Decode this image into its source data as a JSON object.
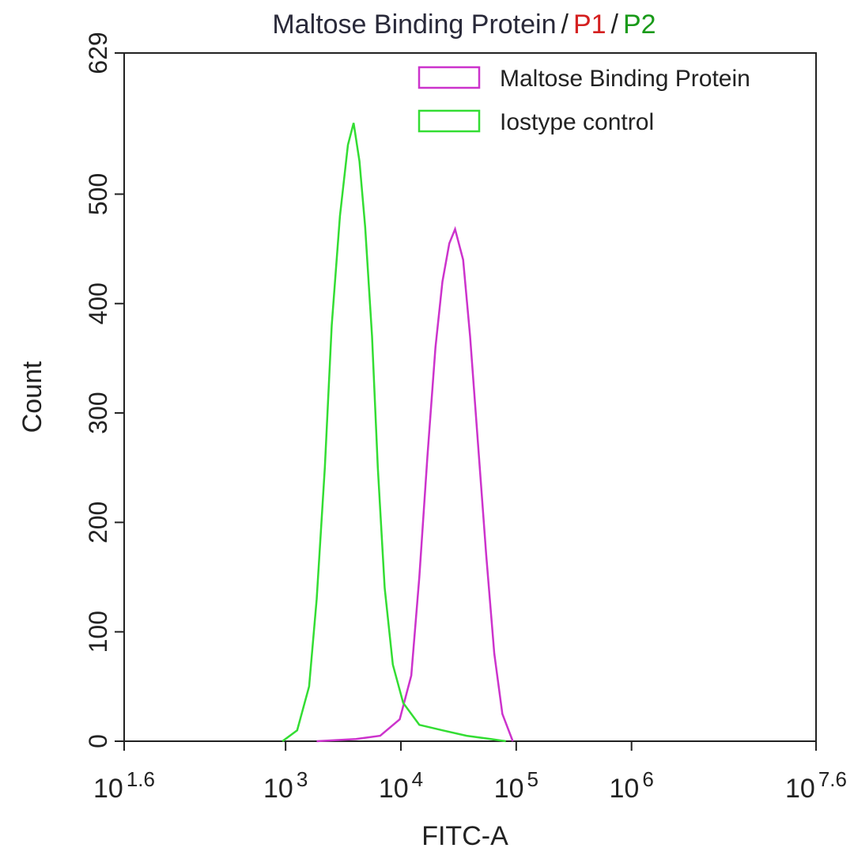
{
  "chart_data": {
    "type": "line",
    "title": {
      "parts": [
        {
          "text": "Maltose Binding Protein",
          "color": "#2a2a3a"
        },
        {
          "text": "P1",
          "color": "#d42020"
        },
        {
          "text": "P2",
          "color": "#1a9a1a"
        }
      ],
      "separator": "/"
    },
    "x_label": "FITC-A",
    "y_label": "Count",
    "x_log": true,
    "xlim": [
      39.81,
      39810717
    ],
    "ylim": [
      0,
      629
    ],
    "xticks": [
      {
        "value": 39.81,
        "label": "10",
        "exponent": "1.6"
      },
      {
        "value": 1000,
        "label": "10",
        "exponent": "3"
      },
      {
        "value": 10000,
        "label": "10",
        "exponent": "4"
      },
      {
        "value": 100000,
        "label": "10",
        "exponent": "5"
      },
      {
        "value": 1000000,
        "label": "10",
        "exponent": "6"
      },
      {
        "value": 39810717,
        "label": "10",
        "exponent": "7.6"
      }
    ],
    "yticks": [
      0,
      100,
      200,
      300,
      400,
      500,
      629
    ],
    "legend": "upper right",
    "series": [
      {
        "name": "Maltose Binding Protein",
        "color": "#cc33cc",
        "x": [
          1860,
          4070,
          6610,
          9770,
          12300,
          14450,
          16980,
          19950,
          22900,
          26300,
          29510,
          34670,
          39810,
          46770,
          54950,
          64570,
          75860,
          93330
        ],
        "values": [
          0,
          2,
          5,
          20,
          60,
          150,
          260,
          360,
          420,
          455,
          468,
          440,
          370,
          270,
          170,
          80,
          25,
          0
        ]
      },
      {
        "name": "Iostype control",
        "color": "#33dd33",
        "x": [
          940,
          1260,
          1600,
          1860,
          2190,
          2510,
          2960,
          3470,
          3890,
          4370,
          4900,
          5620,
          6310,
          7240,
          8510,
          10470,
          14450,
          22900,
          37150,
          60260,
          81280
        ],
        "values": [
          0,
          10,
          50,
          130,
          250,
          380,
          480,
          545,
          565,
          530,
          470,
          370,
          250,
          140,
          70,
          35,
          15,
          10,
          5,
          2,
          0
        ]
      }
    ]
  }
}
